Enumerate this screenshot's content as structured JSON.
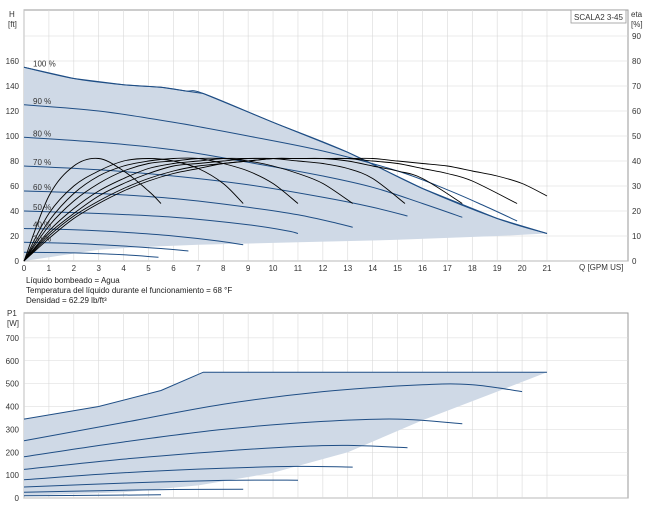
{
  "model_label": "SCALA2 3-45",
  "info": {
    "line1": "Líquido bombeado = Agua",
    "line2": "Temperatura del líquido durante el funcionamiento = 68 °F",
    "line3": "Densidad = 62.29 lb/ft³"
  },
  "colors": {
    "envelope_fill": "#cfd9e6",
    "curve_line": "#1f4e85",
    "eta_line": "#000000",
    "grid": "#d8d8d8"
  },
  "chart_data": [
    {
      "type": "line",
      "title": "",
      "xlabel": "Q [GPM US]",
      "ylabel": "H\n[ft]",
      "y2label": "eta\n[%]",
      "xlim": [
        0,
        21
      ],
      "ylim": [
        0,
        160
      ],
      "y2lim": [
        0,
        90
      ],
      "x_ticks": [
        0,
        1,
        2,
        3,
        4,
        5,
        6,
        7,
        8,
        9,
        10,
        11,
        12,
        13,
        14,
        15,
        16,
        17,
        18,
        19,
        20,
        21
      ],
      "y_ticks": [
        0,
        20,
        40,
        60,
        80,
        100,
        120,
        140,
        160
      ],
      "y2_ticks": [
        0,
        10,
        20,
        30,
        40,
        50,
        60,
        70,
        80,
        90
      ],
      "envelope": [
        [
          0,
          155
        ],
        [
          2,
          146
        ],
        [
          4,
          141
        ],
        [
          5.5,
          139
        ],
        [
          6.5,
          136
        ],
        [
          7.2,
          134
        ],
        [
          10,
          111
        ],
        [
          13,
          87
        ],
        [
          16,
          58
        ],
        [
          19,
          34
        ],
        [
          21,
          22
        ],
        [
          19,
          20
        ],
        [
          15,
          17
        ],
        [
          11,
          15
        ],
        [
          7,
          13
        ],
        [
          4.5,
          11
        ],
        [
          3,
          9
        ],
        [
          0,
          0
        ]
      ],
      "series": [
        {
          "name": "100 %",
          "values": [
            [
              0,
              155
            ],
            [
              2,
              146
            ],
            [
              4,
              141
            ],
            [
              5.5,
              139
            ],
            [
              6.5,
              136
            ],
            [
              7.2,
              134
            ],
            [
              10,
              111
            ],
            [
              13,
              87
            ],
            [
              16,
              58
            ],
            [
              19,
              34
            ],
            [
              21,
              22
            ]
          ]
        },
        {
          "name": "90 %",
          "values": [
            [
              0,
              125
            ],
            [
              3,
              120
            ],
            [
              6,
              111
            ],
            [
              9,
              100
            ],
            [
              12,
              88
            ],
            [
              15,
              72
            ],
            [
              17,
              57
            ],
            [
              18.5,
              44
            ],
            [
              19.8,
              32
            ]
          ]
        },
        {
          "name": "80 %",
          "values": [
            [
              0,
              99
            ],
            [
              3,
              95
            ],
            [
              6,
              89
            ],
            [
              9,
              79
            ],
            [
              12,
              68
            ],
            [
              14,
              59
            ],
            [
              16,
              46
            ],
            [
              17.6,
              35
            ]
          ]
        },
        {
          "name": "70 %",
          "values": [
            [
              0,
              76
            ],
            [
              3,
              73
            ],
            [
              6,
              68
            ],
            [
              9,
              61
            ],
            [
              12,
              51
            ],
            [
              14,
              43
            ],
            [
              15.4,
              36
            ]
          ]
        },
        {
          "name": "60 %",
          "values": [
            [
              0,
              56
            ],
            [
              3,
              54
            ],
            [
              6,
              50
            ],
            [
              9,
              43
            ],
            [
              11,
              37
            ],
            [
              12.6,
              30
            ],
            [
              13.2,
              27
            ]
          ]
        },
        {
          "name": "50 %",
          "values": [
            [
              0,
              40
            ],
            [
              3,
              38
            ],
            [
              6,
              35
            ],
            [
              9,
              29
            ],
            [
              10.6,
              24
            ],
            [
              11,
              22
            ]
          ]
        },
        {
          "name": "40 %",
          "values": [
            [
              0,
              26
            ],
            [
              2,
              25
            ],
            [
              4,
              23
            ],
            [
              6,
              20
            ],
            [
              7.8,
              16
            ],
            [
              8.8,
              13
            ]
          ]
        },
        {
          "name": "30 %",
          "values": [
            [
              0,
              15
            ],
            [
              2,
              14
            ],
            [
              4,
              12
            ],
            [
              5.5,
              10
            ],
            [
              6.6,
              8
            ]
          ]
        },
        {
          "name": "",
          "values": [
            [
              0,
              7
            ],
            [
              2,
              6.5
            ],
            [
              4,
              5
            ],
            [
              5.4,
              3
            ]
          ]
        }
      ],
      "efficiency_series": [
        {
          "values": [
            [
              0,
              0
            ],
            [
              1,
              26
            ],
            [
              2,
              38
            ],
            [
              3,
              41
            ],
            [
              4,
              36
            ],
            [
              5,
              28
            ],
            [
              5.5,
              23
            ]
          ]
        },
        {
          "values": [
            [
              0,
              0
            ],
            [
              1,
              19
            ],
            [
              2,
              30
            ],
            [
              3,
              36
            ],
            [
              4,
              40
            ],
            [
              5,
              41
            ],
            [
              6,
              40
            ],
            [
              7,
              37
            ],
            [
              8,
              31
            ],
            [
              8.8,
              23
            ]
          ]
        },
        {
          "values": [
            [
              0,
              0
            ],
            [
              1,
              16
            ],
            [
              2,
              27
            ],
            [
              3,
              34
            ],
            [
              4,
              38
            ],
            [
              5,
              40
            ],
            [
              6,
              41
            ],
            [
              7,
              41
            ],
            [
              8,
              39
            ],
            [
              9,
              36
            ],
            [
              10,
              31
            ],
            [
              11,
              23
            ]
          ]
        },
        {
          "values": [
            [
              0,
              0
            ],
            [
              1,
              14
            ],
            [
              2,
              24
            ],
            [
              3,
              31
            ],
            [
              4,
              36
            ],
            [
              5,
              39
            ],
            [
              6,
              40
            ],
            [
              7,
              41
            ],
            [
              8,
              41
            ],
            [
              9,
              40
            ],
            [
              10,
              38
            ],
            [
              11,
              35
            ],
            [
              12,
              31
            ],
            [
              13.2,
              23
            ]
          ]
        },
        {
          "values": [
            [
              0,
              0
            ],
            [
              1,
              12
            ],
            [
              2,
              21
            ],
            [
              3,
              28
            ],
            [
              4,
              33
            ],
            [
              5,
              37
            ],
            [
              6,
              39
            ],
            [
              7,
              40
            ],
            [
              8,
              41
            ],
            [
              9,
              41
            ],
            [
              10,
              41
            ],
            [
              11,
              40
            ],
            [
              12,
              39
            ],
            [
              13,
              37
            ],
            [
              14,
              33
            ],
            [
              15.3,
              23
            ]
          ]
        },
        {
          "values": [
            [
              0,
              0
            ],
            [
              1,
              11
            ],
            [
              2,
              19
            ],
            [
              3,
              26
            ],
            [
              4,
              31
            ],
            [
              5,
              35
            ],
            [
              6,
              38
            ],
            [
              7,
              39
            ],
            [
              8,
              40
            ],
            [
              9,
              41
            ],
            [
              10,
              41
            ],
            [
              11,
              41
            ],
            [
              12,
              41
            ],
            [
              13,
              40
            ],
            [
              14,
              38
            ],
            [
              15,
              36
            ],
            [
              16,
              33
            ],
            [
              17.6,
              23
            ]
          ]
        },
        {
          "values": [
            [
              0,
              0
            ],
            [
              1,
              10
            ],
            [
              2,
              18
            ],
            [
              3,
              24
            ],
            [
              4,
              29
            ],
            [
              5,
              33
            ],
            [
              6,
              36
            ],
            [
              7,
              38
            ],
            [
              8,
              39
            ],
            [
              9,
              40
            ],
            [
              10,
              41
            ],
            [
              11,
              41
            ],
            [
              12,
              41
            ],
            [
              13,
              41
            ],
            [
              14,
              40
            ],
            [
              15,
              39
            ],
            [
              16,
              37
            ],
            [
              17,
              35
            ],
            [
              18,
              32
            ],
            [
              19.8,
              23
            ]
          ]
        },
        {
          "values": [
            [
              0,
              0
            ],
            [
              1,
              9
            ],
            [
              2,
              17
            ],
            [
              3,
              23
            ],
            [
              4,
              28
            ],
            [
              5,
              32
            ],
            [
              6,
              35
            ],
            [
              7,
              37
            ],
            [
              8,
              39
            ],
            [
              9,
              40
            ],
            [
              10,
              41
            ],
            [
              11,
              41
            ],
            [
              12,
              41
            ],
            [
              13,
              41
            ],
            [
              14,
              41
            ],
            [
              15,
              40
            ],
            [
              16,
              39
            ],
            [
              17,
              38
            ],
            [
              18,
              36
            ],
            [
              19,
              34
            ],
            [
              20,
              31
            ],
            [
              21,
              26
            ]
          ]
        }
      ]
    },
    {
      "type": "line",
      "title": "",
      "xlabel": "",
      "ylabel": "P1\n[W]",
      "xlim": [
        0,
        21
      ],
      "ylim": [
        0,
        800
      ],
      "y_ticks": [
        0,
        100,
        200,
        300,
        400,
        500,
        600,
        700
      ],
      "envelope": [
        [
          0,
          345
        ],
        [
          3,
          400
        ],
        [
          5.5,
          470
        ],
        [
          7.2,
          550
        ],
        [
          21,
          550
        ],
        [
          19,
          465
        ],
        [
          16,
          340
        ],
        [
          13,
          200
        ],
        [
          10,
          110
        ],
        [
          7,
          55
        ],
        [
          4,
          25
        ],
        [
          0,
          10
        ]
      ],
      "series": [
        {
          "name": "",
          "values": [
            [
              0,
              345
            ],
            [
              3,
              400
            ],
            [
              5.5,
              470
            ],
            [
              7.2,
              550
            ],
            [
              21,
              550
            ]
          ]
        },
        {
          "name": "",
          "values": [
            [
              0,
              250
            ],
            [
              4,
              330
            ],
            [
              8,
              410
            ],
            [
              12,
              465
            ],
            [
              16,
              495
            ],
            [
              18,
              495
            ],
            [
              20,
              465
            ]
          ]
        },
        {
          "name": "",
          "values": [
            [
              0,
              180
            ],
            [
              4,
              245
            ],
            [
              8,
              300
            ],
            [
              12,
              335
            ],
            [
              15,
              345
            ],
            [
              17.6,
              325
            ]
          ]
        },
        {
          "name": "",
          "values": [
            [
              0,
              125
            ],
            [
              4,
              170
            ],
            [
              8,
              205
            ],
            [
              11,
              225
            ],
            [
              13,
              230
            ],
            [
              15.4,
              220
            ]
          ]
        },
        {
          "name": "",
          "values": [
            [
              0,
              80
            ],
            [
              4,
              110
            ],
            [
              8,
              130
            ],
            [
              11,
              138
            ],
            [
              13.2,
              135
            ]
          ]
        },
        {
          "name": "",
          "values": [
            [
              0,
              48
            ],
            [
              4,
              65
            ],
            [
              8,
              77
            ],
            [
              11,
              78
            ]
          ]
        },
        {
          "name": "",
          "values": [
            [
              0,
              25
            ],
            [
              3,
              32
            ],
            [
              6,
              37
            ],
            [
              8.8,
              38
            ]
          ]
        },
        {
          "name": "",
          "values": [
            [
              0,
              10
            ],
            [
              3,
              12
            ],
            [
              5.5,
              14
            ]
          ]
        }
      ]
    }
  ]
}
